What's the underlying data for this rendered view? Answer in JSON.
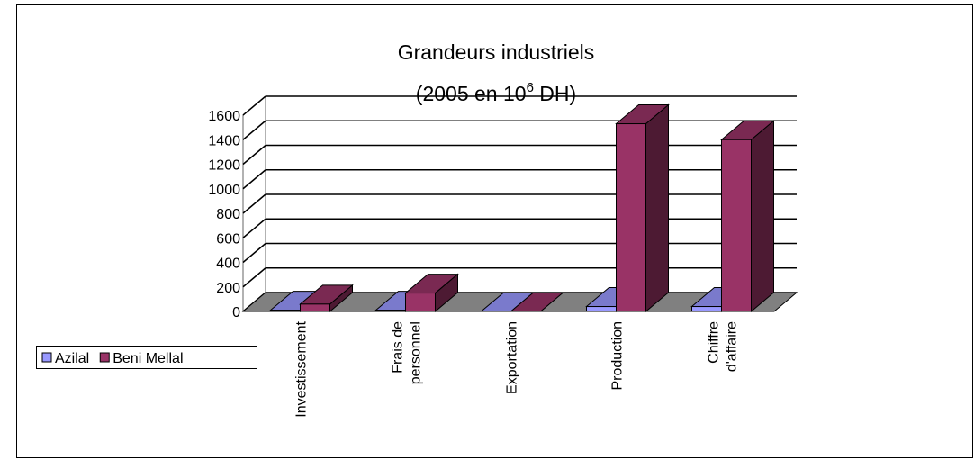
{
  "chart_data": {
    "type": "bar3d",
    "title": "Grandeurs industriels",
    "subtitle": [
      "(2005 en 10",
      "6",
      " DH)"
    ],
    "categories": [
      [
        "Investissement"
      ],
      [
        "Frais de",
        "personnel"
      ],
      [
        "Exportation"
      ],
      [
        "Production"
      ],
      [
        "Chiffre",
        "d'affaire"
      ]
    ],
    "series": [
      {
        "name": "Azilal",
        "color": "#9999ff",
        "values": [
          10,
          10,
          0,
          40,
          40
        ]
      },
      {
        "name": "Beni Mellal",
        "color": "#993366",
        "values": [
          60,
          150,
          0,
          1530,
          1400
        ]
      }
    ],
    "ylim": [
      0,
      1600
    ],
    "yticks": [
      0,
      200,
      400,
      600,
      800,
      1000,
      1200,
      1400,
      1600
    ],
    "grid": true,
    "legend": "left"
  }
}
